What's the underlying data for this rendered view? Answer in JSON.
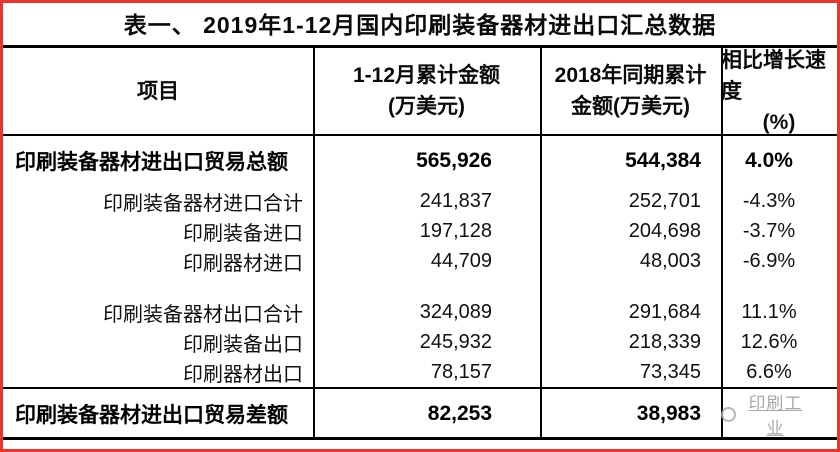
{
  "title": "表一、 2019年1-12月国内印刷装备器材进出口汇总数据",
  "colors": {
    "frame": "#e8352e",
    "grid_line": "#000000",
    "text": "#111111",
    "watermark": "#9a9a9a"
  },
  "table": {
    "headers": [
      {
        "line1": "项目",
        "line2": ""
      },
      {
        "line1": "1-12月累计金额",
        "line2": "(万美元)"
      },
      {
        "line1": "2018年同期累计",
        "line2": "金额(万美元)"
      },
      {
        "line1": "相比增长速度",
        "line2": "(%)"
      }
    ],
    "rows": [
      {
        "label": "印刷装备器材进出口贸易总额",
        "amount_2019": "565,926",
        "amount_2018": "544,384",
        "growth": "4.0%"
      },
      {
        "label": "印刷装备器材进口合计",
        "amount_2019": "241,837",
        "amount_2018": "252,701",
        "growth": "-4.3%"
      },
      {
        "label": "印刷装备进口",
        "amount_2019": "197,128",
        "amount_2018": "204,698",
        "growth": "-3.7%"
      },
      {
        "label": "印刷器材进口",
        "amount_2019": "44,709",
        "amount_2018": "48,003",
        "growth": "-6.9%"
      },
      {
        "label": "印刷装备器材出口合计",
        "amount_2019": "324,089",
        "amount_2018": "291,684",
        "growth": "11.1%"
      },
      {
        "label": "印刷装备出口",
        "amount_2019": "245,932",
        "amount_2018": "218,339",
        "growth": "12.6%"
      },
      {
        "label": "印刷器材出口",
        "amount_2019": "78,157",
        "amount_2018": "73,345",
        "growth": "6.6%"
      },
      {
        "label": "印刷装备器材进出口贸易差额",
        "amount_2019": "82,253",
        "amount_2018": "38,983",
        "growth": ""
      }
    ]
  },
  "watermark": {
    "text": "印刷工业"
  }
}
